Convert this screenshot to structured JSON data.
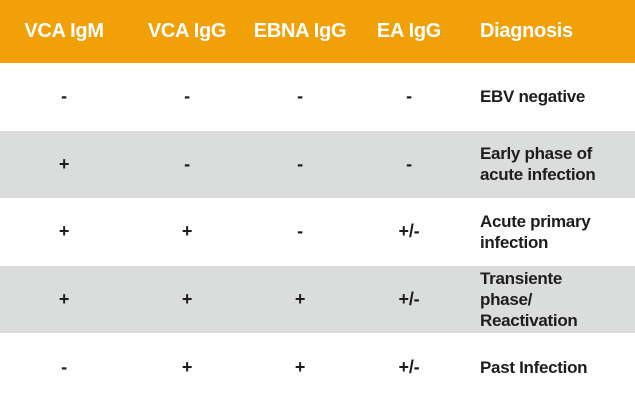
{
  "chart_data": {
    "type": "table",
    "title": "",
    "columns": [
      "VCA IgM",
      "VCA IgG",
      "EBNA IgG",
      "EA IgG",
      "Diagnosis"
    ],
    "rows": [
      [
        "-",
        "-",
        "-",
        "-",
        "EBV negative"
      ],
      [
        "+",
        "-",
        "-",
        "-",
        "Early phase of acute infection"
      ],
      [
        "+",
        "+",
        "-",
        "+/-",
        "Acute primary infection"
      ],
      [
        "+",
        "+",
        "+",
        "+/-",
        "Transiente phase/ Reactivation"
      ],
      [
        "-",
        "+",
        "+",
        "+/-",
        "Past Infection"
      ]
    ],
    "layout_hints": {
      "header_style": "orange band, white bold text",
      "row_striping": "white / light gray alternating starting with white"
    }
  },
  "colors": {
    "header_bg": "#F2A007",
    "header_text": "#FFFFFF",
    "alt_row_bg": "#DBDCDC",
    "row_bg": "#FFFFFF",
    "text": "#1D1D1B"
  }
}
